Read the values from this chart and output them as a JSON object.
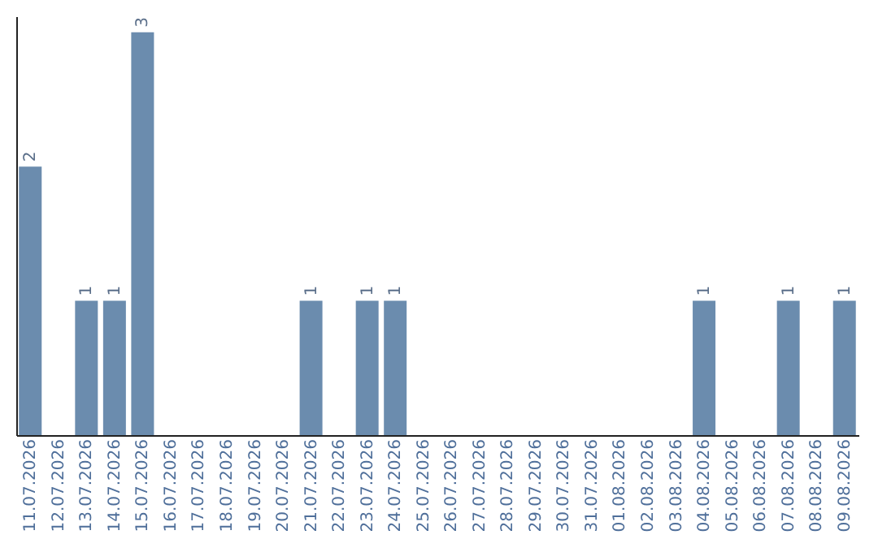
{
  "chart_data": {
    "type": "bar",
    "categories": [
      "11.07.2026",
      "12.07.2026",
      "13.07.2026",
      "14.07.2026",
      "15.07.2026",
      "16.07.2026",
      "17.07.2026",
      "18.07.2026",
      "19.07.2026",
      "20.07.2026",
      "21.07.2026",
      "22.07.2026",
      "23.07.2026",
      "24.07.2026",
      "25.07.2026",
      "26.07.2026",
      "27.07.2026",
      "28.07.2026",
      "29.07.2026",
      "30.07.2026",
      "31.07.2026",
      "01.08.2026",
      "02.08.2026",
      "03.08.2026",
      "04.08.2026",
      "05.08.2026",
      "06.08.2026",
      "07.08.2026",
      "08.08.2026",
      "09.08.2026"
    ],
    "values": [
      2,
      0,
      1,
      1,
      3,
      0,
      0,
      0,
      0,
      0,
      1,
      0,
      1,
      1,
      0,
      0,
      0,
      0,
      0,
      0,
      0,
      0,
      0,
      0,
      1,
      0,
      0,
      1,
      0,
      1
    ],
    "value_labels": [
      "2",
      null,
      "1",
      "1",
      "3",
      null,
      null,
      null,
      null,
      null,
      "1",
      null,
      "1",
      "1",
      null,
      null,
      null,
      null,
      null,
      null,
      null,
      null,
      null,
      null,
      "1",
      null,
      null,
      "1",
      null,
      "1"
    ],
    "color": "#6b8cae",
    "ylim": [
      0,
      3.12
    ],
    "tick_labels": "x",
    "grid": false
  }
}
